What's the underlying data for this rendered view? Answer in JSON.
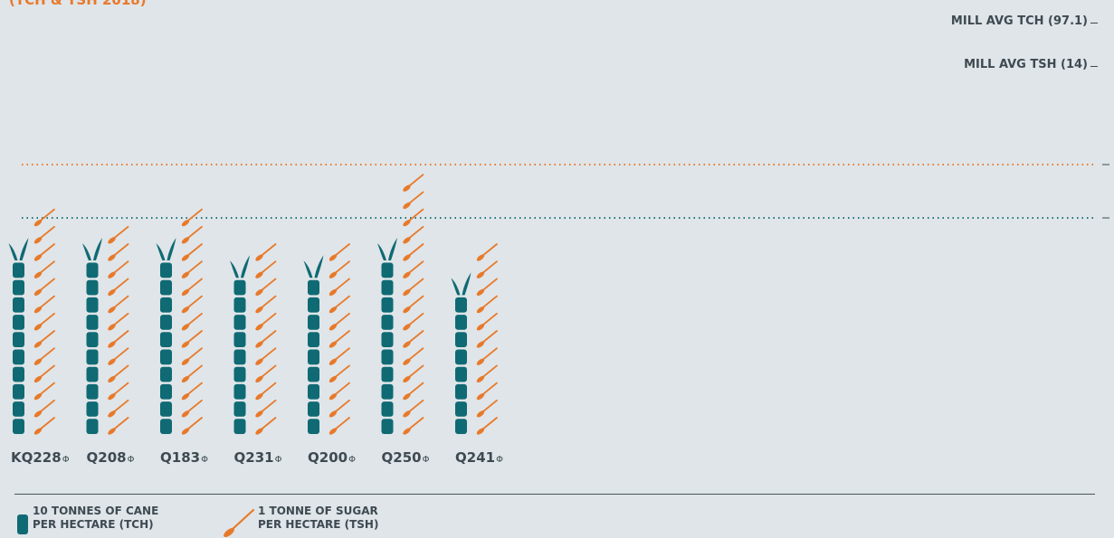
{
  "title": "(TCH & TSH 2018)",
  "reference_lines": {
    "tch": {
      "label": "MILL AVG TCH (97.1)",
      "value": 97.1,
      "color": "#e8792a"
    },
    "tsh": {
      "label": "MILL AVG TSH (14)",
      "value": 14,
      "color": "#1e7282"
    }
  },
  "legend": {
    "cane": {
      "line1": "10 TONNES OF CANE",
      "line2": "PER HECTARE (TCH)",
      "icon": "sugarcane-segment-icon"
    },
    "sugar": {
      "line1": "1 TONNE OF SUGAR",
      "line2": "PER HECTARE (TSH)",
      "icon": "spoon-icon"
    }
  },
  "variety_symbol": "Φ",
  "colors": {
    "cane": "#0f6a74",
    "leaf": "#0f6a74",
    "sugar": "#e8792a",
    "text": "#3e4a52",
    "background": "#dfe5e8"
  },
  "chart_data": {
    "type": "pictograph",
    "categories": [
      "KQ228",
      "Q208",
      "Q183",
      "Q231",
      "Q200",
      "Q250",
      "Q241"
    ],
    "series": [
      {
        "name": "TCH",
        "values": [
          10,
          10,
          10,
          9,
          9,
          10,
          8
        ]
      },
      {
        "name": "TSH",
        "values": [
          13,
          12,
          13,
          11,
          11,
          15,
          11
        ]
      }
    ]
  }
}
